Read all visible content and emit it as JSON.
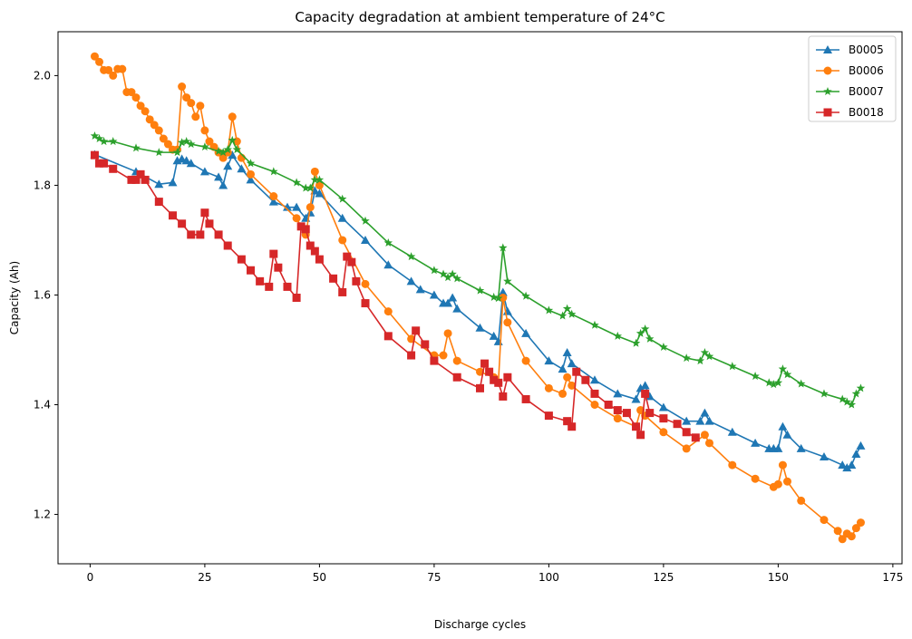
{
  "chart_data": {
    "type": "line",
    "title": "Capacity degradation at ambient temperature of 24°C",
    "xlabel": "Discharge cycles",
    "ylabel": "Capacity (Ah)",
    "xlim": [
      -7,
      177
    ],
    "ylim": [
      1.11,
      2.08
    ],
    "xticks": [
      0,
      25,
      50,
      75,
      100,
      125,
      150,
      175
    ],
    "yticks": [
      1.2,
      1.4,
      1.6,
      1.8,
      2.0
    ],
    "grid": false,
    "legend_position": "top-right",
    "series": [
      {
        "name": "B0005",
        "color": "#1f77b4",
        "marker": "triangle",
        "x": [
          1,
          10,
          15,
          18,
          19,
          20,
          21,
          22,
          25,
          28,
          29,
          30,
          31,
          33,
          35,
          40,
          43,
          45,
          47,
          48,
          49,
          50,
          55,
          60,
          65,
          70,
          72,
          75,
          77,
          78,
          79,
          80,
          85,
          88,
          89,
          90,
          91,
          95,
          100,
          103,
          104,
          105,
          110,
          115,
          119,
          120,
          121,
          122,
          125,
          130,
          133,
          134,
          135,
          140,
          145,
          148,
          149,
          150,
          151,
          152,
          155,
          160,
          164,
          165,
          166,
          167,
          168
        ],
        "y": [
          1.856,
          1.825,
          1.802,
          1.805,
          1.845,
          1.848,
          1.845,
          1.84,
          1.825,
          1.815,
          1.8,
          1.835,
          1.855,
          1.83,
          1.81,
          1.77,
          1.76,
          1.76,
          1.74,
          1.75,
          1.79,
          1.785,
          1.74,
          1.7,
          1.655,
          1.625,
          1.61,
          1.6,
          1.585,
          1.585,
          1.595,
          1.575,
          1.54,
          1.525,
          1.515,
          1.605,
          1.57,
          1.53,
          1.48,
          1.465,
          1.495,
          1.475,
          1.445,
          1.42,
          1.41,
          1.43,
          1.435,
          1.415,
          1.395,
          1.37,
          1.37,
          1.385,
          1.37,
          1.35,
          1.33,
          1.32,
          1.32,
          1.32,
          1.36,
          1.345,
          1.32,
          1.305,
          1.29,
          1.285,
          1.29,
          1.31,
          1.325
        ]
      },
      {
        "name": "B0006",
        "color": "#ff7f0e",
        "marker": "circle",
        "x": [
          1,
          2,
          3,
          4,
          5,
          6,
          7,
          8,
          9,
          10,
          11,
          12,
          13,
          14,
          15,
          16,
          17,
          18,
          19,
          20,
          21,
          22,
          23,
          24,
          25,
          26,
          27,
          28,
          29,
          30,
          31,
          32,
          33,
          35,
          40,
          45,
          47,
          48,
          49,
          50,
          55,
          60,
          65,
          70,
          75,
          77,
          78,
          80,
          85,
          88,
          89,
          90,
          91,
          95,
          100,
          103,
          104,
          105,
          110,
          115,
          119,
          120,
          121,
          125,
          130,
          134,
          135,
          140,
          145,
          149,
          150,
          151,
          152,
          155,
          160,
          163,
          164,
          165,
          166,
          167,
          168
        ],
        "y": [
          2.035,
          2.025,
          2.01,
          2.01,
          2.0,
          2.012,
          2.012,
          1.97,
          1.97,
          1.96,
          1.945,
          1.935,
          1.92,
          1.91,
          1.9,
          1.885,
          1.875,
          1.865,
          1.865,
          1.98,
          1.96,
          1.95,
          1.925,
          1.945,
          1.9,
          1.88,
          1.87,
          1.86,
          1.85,
          1.86,
          1.925,
          1.88,
          1.85,
          1.82,
          1.78,
          1.74,
          1.71,
          1.76,
          1.825,
          1.8,
          1.7,
          1.62,
          1.57,
          1.52,
          1.49,
          1.49,
          1.53,
          1.48,
          1.46,
          1.45,
          1.44,
          1.595,
          1.55,
          1.48,
          1.43,
          1.42,
          1.45,
          1.435,
          1.4,
          1.375,
          1.36,
          1.39,
          1.38,
          1.35,
          1.32,
          1.345,
          1.33,
          1.29,
          1.265,
          1.25,
          1.255,
          1.29,
          1.26,
          1.225,
          1.19,
          1.17,
          1.155,
          1.165,
          1.16,
          1.175,
          1.185
        ]
      },
      {
        "name": "B0007",
        "color": "#2ca02c",
        "marker": "star",
        "x": [
          1,
          2,
          3,
          5,
          10,
          15,
          19,
          20,
          21,
          22,
          25,
          28,
          29,
          30,
          31,
          32,
          35,
          40,
          45,
          47,
          48,
          49,
          50,
          55,
          60,
          65,
          70,
          75,
          77,
          78,
          79,
          80,
          85,
          88,
          89,
          90,
          91,
          95,
          100,
          103,
          104,
          105,
          110,
          115,
          119,
          120,
          121,
          122,
          125,
          130,
          133,
          134,
          135,
          140,
          145,
          148,
          149,
          150,
          151,
          152,
          155,
          160,
          164,
          165,
          166,
          167,
          168
        ],
        "y": [
          1.89,
          1.885,
          1.88,
          1.88,
          1.868,
          1.86,
          1.86,
          1.878,
          1.88,
          1.875,
          1.87,
          1.862,
          1.86,
          1.865,
          1.882,
          1.865,
          1.84,
          1.825,
          1.805,
          1.795,
          1.795,
          1.81,
          1.81,
          1.775,
          1.735,
          1.695,
          1.67,
          1.645,
          1.638,
          1.632,
          1.638,
          1.63,
          1.608,
          1.596,
          1.594,
          1.686,
          1.625,
          1.598,
          1.572,
          1.562,
          1.575,
          1.565,
          1.545,
          1.525,
          1.512,
          1.53,
          1.538,
          1.52,
          1.505,
          1.485,
          1.48,
          1.495,
          1.488,
          1.47,
          1.452,
          1.44,
          1.437,
          1.44,
          1.465,
          1.455,
          1.438,
          1.42,
          1.41,
          1.405,
          1.4,
          1.42,
          1.43
        ]
      },
      {
        "name": "B0018",
        "color": "#d62728",
        "marker": "square",
        "x": [
          1,
          2,
          3,
          5,
          9,
          10,
          11,
          12,
          15,
          18,
          20,
          22,
          24,
          25,
          26,
          28,
          30,
          33,
          35,
          37,
          39,
          40,
          41,
          43,
          45,
          46,
          47,
          48,
          49,
          50,
          53,
          55,
          56,
          57,
          58,
          60,
          65,
          70,
          71,
          73,
          75,
          80,
          85,
          86,
          87,
          88,
          89,
          90,
          91,
          95,
          100,
          104,
          105,
          106,
          108,
          110,
          113,
          115,
          117,
          119,
          120,
          121,
          122,
          125,
          128,
          130,
          132
        ],
        "y": [
          1.855,
          1.84,
          1.84,
          1.83,
          1.81,
          1.81,
          1.82,
          1.81,
          1.77,
          1.745,
          1.73,
          1.71,
          1.71,
          1.75,
          1.73,
          1.71,
          1.69,
          1.665,
          1.645,
          1.625,
          1.615,
          1.675,
          1.65,
          1.615,
          1.595,
          1.725,
          1.72,
          1.69,
          1.68,
          1.665,
          1.63,
          1.605,
          1.67,
          1.66,
          1.625,
          1.585,
          1.525,
          1.49,
          1.535,
          1.51,
          1.48,
          1.45,
          1.43,
          1.475,
          1.46,
          1.445,
          1.44,
          1.415,
          1.45,
          1.41,
          1.38,
          1.37,
          1.36,
          1.46,
          1.445,
          1.42,
          1.4,
          1.39,
          1.385,
          1.36,
          1.345,
          1.42,
          1.385,
          1.375,
          1.365,
          1.35,
          1.34
        ]
      }
    ]
  }
}
